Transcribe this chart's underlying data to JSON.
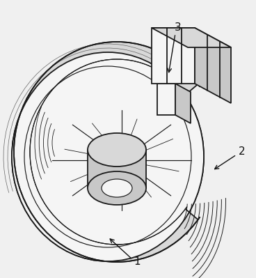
{
  "bg": "#f0f0f0",
  "lc": "#1a1a1a",
  "ac": "#111111",
  "fig_width": 3.68,
  "fig_height": 3.99,
  "dpi": 100,
  "gray1": "#e8e8e8",
  "gray2": "#d8d8d8",
  "gray3": "#c8c8c8",
  "gray4": "#b8b8b8",
  "white": "#f5f5f5"
}
